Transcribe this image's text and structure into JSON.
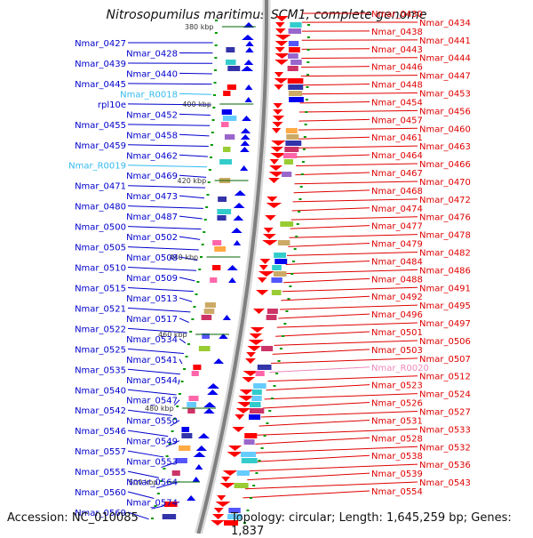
{
  "title": "Nitrosopumilus maritimus SCM1, complete genome",
  "footer": {
    "accession": "Accession: NC_010085",
    "topology": "Topology: circular; Length: 1,645,259 bp; Genes: 1,837"
  },
  "colors": {
    "left_labels": "#0000cc",
    "right_labels": "#e00000",
    "rna_left": "#33bbee",
    "rna_right": "#ee88bb",
    "backbone": "#808080",
    "tick": "#009900"
  },
  "ruler": [
    "380 kbp",
    "400 kbp",
    "420 kbp",
    "440 kbp",
    "460 kbp",
    "480 kbp",
    "500 kbp"
  ],
  "left_labels": [
    "Nmar_0427",
    "Nmar_0428",
    "Nmar_0439",
    "Nmar_0440",
    "Nmar_0445",
    "Nmar_R0018",
    "rpl10e",
    "Nmar_0452",
    "Nmar_0455",
    "Nmar_0458",
    "Nmar_0459",
    "Nmar_0462",
    "Nmar_R0019",
    "Nmar_0469",
    "Nmar_0471",
    "Nmar_0473",
    "Nmar_0480",
    "Nmar_0487",
    "Nmar_0500",
    "Nmar_0502",
    "Nmar_0505",
    "Nmar_0508",
    "Nmar_0510",
    "Nmar_0509",
    "Nmar_0515",
    "Nmar_0513",
    "Nmar_0521",
    "Nmar_0517",
    "Nmar_0522",
    "Nmar_0534",
    "Nmar_0525",
    "Nmar_0541",
    "Nmar_0535",
    "Nmar_0544",
    "Nmar_0540",
    "Nmar_0547",
    "Nmar_0542",
    "Nmar_0550",
    "Nmar_0546",
    "Nmar_0549",
    "Nmar_0557",
    "Nmar_0553",
    "Nmar_0555",
    "Nmar_0564",
    "Nmar_0560",
    "Nmar_0574",
    "Nmar_0569"
  ],
  "right_labels": [
    "Nmar_0430",
    "Nmar_0434",
    "Nmar_0438",
    "Nmar_0441",
    "Nmar_0443",
    "Nmar_0444",
    "Nmar_0446",
    "Nmar_0447",
    "Nmar_0448",
    "Nmar_0453",
    "Nmar_0454",
    "Nmar_0456",
    "Nmar_0457",
    "Nmar_0460",
    "Nmar_0461",
    "Nmar_0463",
    "Nmar_0464",
    "Nmar_0466",
    "Nmar_0467",
    "Nmar_0470",
    "Nmar_0468",
    "Nmar_0472",
    "Nmar_0474",
    "Nmar_0476",
    "Nmar_0477",
    "Nmar_0478",
    "Nmar_0479",
    "Nmar_0482",
    "Nmar_0484",
    "Nmar_0486",
    "Nmar_0488",
    "Nmar_0491",
    "Nmar_0492",
    "Nmar_0495",
    "Nmar_0496",
    "Nmar_0497",
    "Nmar_0501",
    "Nmar_0506",
    "Nmar_0503",
    "Nmar_0507",
    "Nmar_R0020",
    "Nmar_0512",
    "Nmar_0523",
    "Nmar_0524",
    "Nmar_0526",
    "Nmar_0527",
    "Nmar_0531",
    "Nmar_0533",
    "Nmar_0528",
    "Nmar_0532",
    "Nmar_0538",
    "Nmar_0536",
    "Nmar_0539",
    "Nmar_0543",
    "Nmar_0554"
  ]
}
